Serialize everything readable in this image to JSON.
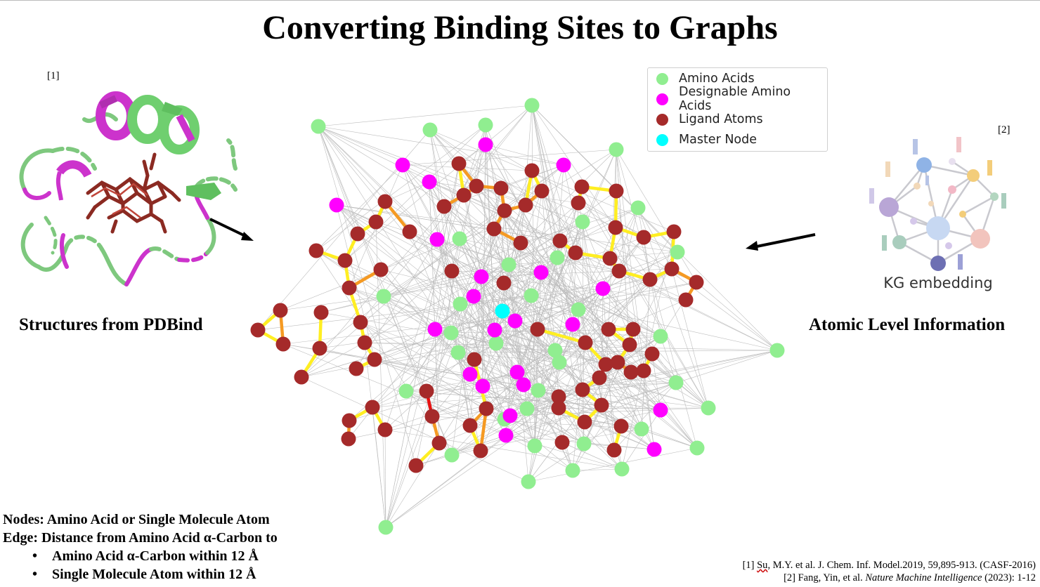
{
  "title": "Converting Binding Sites to Graphs",
  "left_panel": {
    "ref_marker": "[1]",
    "caption": "Structures from PDBind"
  },
  "right_panel": {
    "ref_marker": "[2]",
    "image_label": "KG embedding",
    "caption": "Atomic Level Information"
  },
  "legend": {
    "items": [
      {
        "label": "Amino Acids",
        "color": "#90ee90"
      },
      {
        "label": "Designable Amino Acids",
        "color": "#ff00ff"
      },
      {
        "label": "Ligand Atoms",
        "color": "#a52a2a"
      },
      {
        "label": "Master Node",
        "color": "#00ffff"
      }
    ]
  },
  "colors": {
    "amino": "#90ee90",
    "designable": "#ff00ff",
    "ligand": "#a52a2a",
    "master": "#00ffff",
    "edge_yellow": "#ffee22",
    "edge_orange": "#f59a23",
    "edge_red": "#e81010"
  },
  "notes": {
    "line1": "Nodes: Amino Acid or Single Molecule Atom",
    "line2": "Edge: Distance from Amino Acid α-Carbon to",
    "bullet1": "Amino Acid α-Carbon within 12 Å",
    "bullet2": "Single Molecule Atom within 12 Å",
    "bullet_symbol": "•"
  },
  "citations": {
    "c1_prefix": "[1] ",
    "c1_name": "Su",
    "c1_rest": ", M.Y. et al. J. Chem. Inf. Model.2019, 59,895-913. (CASF-2016)",
    "c2_prefix": "[2] Fang, Yin, et al. ",
    "c2_journal": "Nature Machine Intelligence",
    "c2_rest": " (2023): 1-12"
  }
}
